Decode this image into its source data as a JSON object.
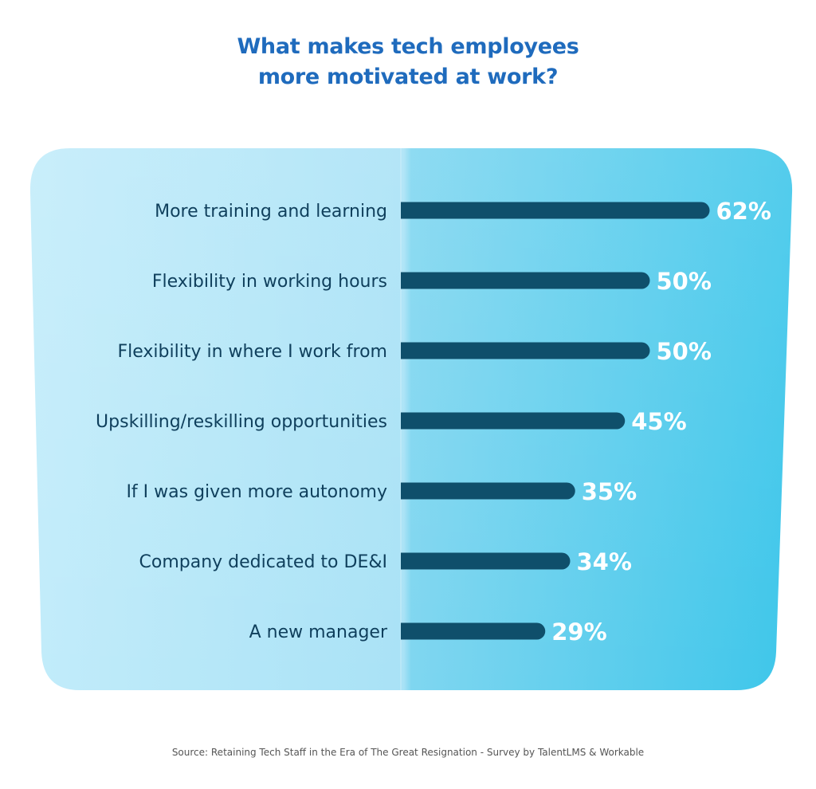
{
  "title_lines": [
    "What makes tech employees",
    "more motivated at work?"
  ],
  "source": "Source: Retaining Tech Staff in the Era of The Great Resignation - Survey by TalentLMS & Workable",
  "colors": {
    "title": "#1f6bbd",
    "bar": "#0f4f6b",
    "label": "#0f3f5c",
    "value": "#ffffff",
    "panel_left": "#b7e8f8",
    "panel_right": "#45c9ea"
  },
  "chart_data": {
    "type": "bar",
    "orientation": "horizontal",
    "title": "What makes tech employees more motivated at work?",
    "categories": [
      "More training and learning",
      "Flexibility in working hours",
      "Flexibility in where I work from",
      "Upskilling/reskilling opportunities",
      "If I was given more autonomy",
      "Company dedicated to DE&I",
      "A new manager"
    ],
    "values": [
      62,
      50,
      50,
      45,
      35,
      34,
      29
    ],
    "value_labels": [
      "62%",
      "50%",
      "50%",
      "45%",
      "35%",
      "34%",
      "29%"
    ],
    "unit": "%",
    "xlim": [
      0,
      100
    ],
    "grid": false,
    "legend": "none"
  }
}
